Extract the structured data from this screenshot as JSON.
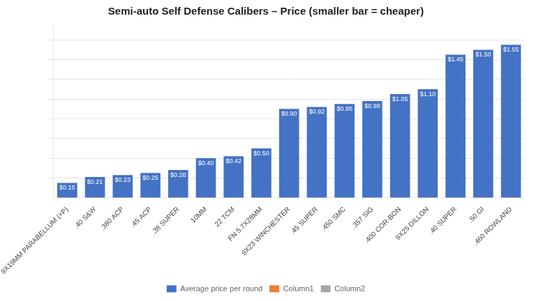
{
  "chart_data": {
    "type": "bar",
    "title": "Semi-auto Self Defense Calibers – Price (smaller bar = cheaper)",
    "categories": [
      "9X19MM PARABELLUM (+P)",
      ".40 S&W",
      ".380 ACP",
      ".45 ACP",
      ".38 SUPER",
      "10MM",
      "22 TCM",
      "FN 5.7X28MM",
      "9X23 WINCHESTER",
      ".45 SUPER",
      ".450 SMC",
      ".357 SIG",
      ".400 COR-BON",
      "9X25 DILLON",
      ".40 SUPER",
      ".50 GI",
      ".460 ROWLAND"
    ],
    "series": [
      {
        "name": "Average price per round",
        "color": "#4472C4",
        "values": [
          0.15,
          0.21,
          0.23,
          0.25,
          0.28,
          0.4,
          0.42,
          0.5,
          0.9,
          0.92,
          0.95,
          0.98,
          1.05,
          1.1,
          1.45,
          1.5,
          1.55
        ],
        "value_labels": [
          "$0.15",
          "$0.21",
          "$0.23",
          "$0.25",
          "$0.28",
          "$0.40",
          "$0.42",
          "$0.50",
          "$0.90",
          "$0.92",
          "$0.95",
          "$0.98",
          "$1.05",
          "$1.10",
          "$1.45",
          "$1.50",
          "$1.55"
        ]
      },
      {
        "name": "Column1",
        "color": "#ED7D31",
        "values": [
          null,
          null,
          null,
          null,
          null,
          null,
          null,
          null,
          null,
          null,
          null,
          null,
          null,
          null,
          null,
          null,
          null
        ]
      },
      {
        "name": "Column2",
        "color": "#A5A5A5",
        "values": [
          null,
          null,
          null,
          null,
          null,
          null,
          null,
          null,
          null,
          null,
          null,
          null,
          null,
          null,
          null,
          null,
          null
        ]
      }
    ],
    "ylim": [
      0,
      1.75
    ],
    "yticks": [
      0.2,
      0.4,
      0.6,
      0.8,
      1.0,
      1.2,
      1.4,
      1.6
    ],
    "grid": true,
    "legend": "bottom",
    "data_labels": true,
    "tick_labels": "x"
  }
}
